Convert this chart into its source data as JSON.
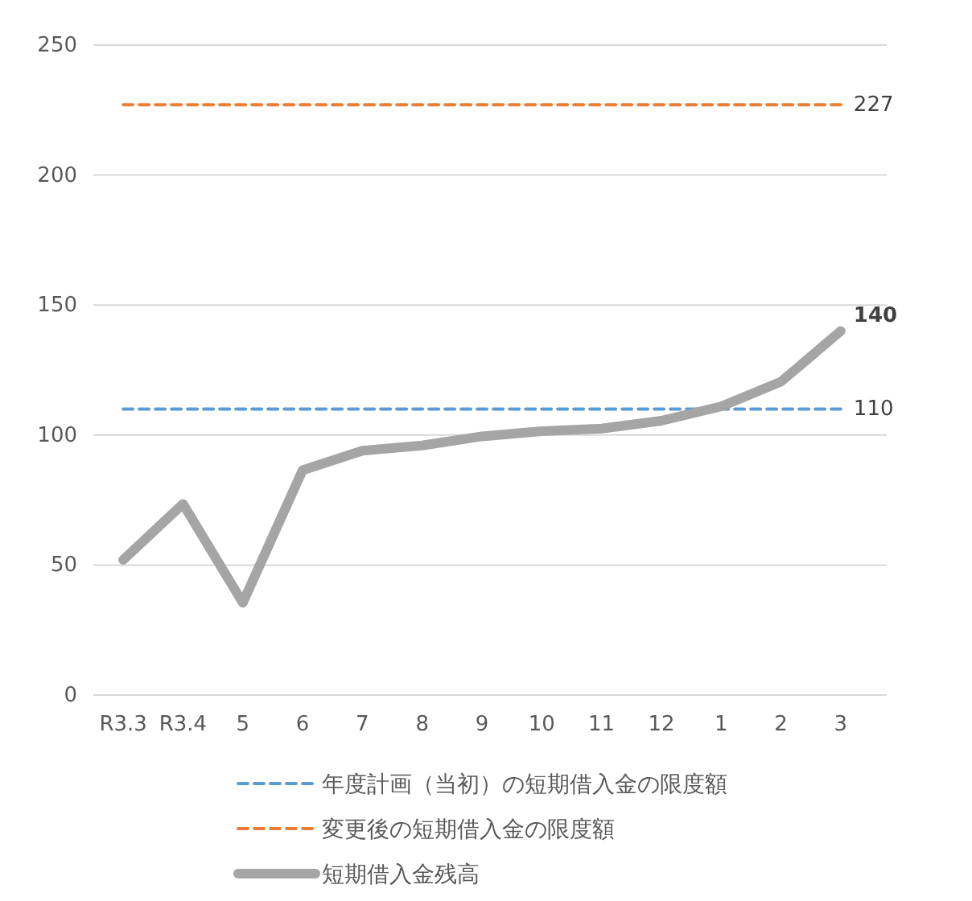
{
  "chart_data": {
    "type": "line",
    "categories": [
      "R3.3",
      "R3.4",
      "5",
      "6",
      "7",
      "8",
      "9",
      "10",
      "11",
      "12",
      "1",
      "2",
      "3"
    ],
    "series": [
      {
        "name": "年度計画（当初）の短期借入金の限度額",
        "color": "#5b9bd5",
        "line_style": "dashed",
        "values": [
          110,
          110,
          110,
          110,
          110,
          110,
          110,
          110,
          110,
          110,
          110,
          110,
          110
        ],
        "value_labels": [
          null,
          null,
          null,
          null,
          null,
          null,
          null,
          null,
          null,
          null,
          null,
          null,
          "110"
        ]
      },
      {
        "name": "変更後の短期借入金の限度額",
        "color": "#ed7d31",
        "line_style": "dashed",
        "values": [
          227,
          227,
          227,
          227,
          227,
          227,
          227,
          227,
          227,
          227,
          227,
          227,
          227
        ],
        "value_labels": [
          null,
          null,
          null,
          null,
          null,
          null,
          null,
          null,
          null,
          null,
          null,
          null,
          "227"
        ]
      },
      {
        "name": "短期借入金残高",
        "color": "#a5a5a5",
        "line_style": "solid",
        "values": [
          52,
          73.5,
          35.5,
          86.5,
          94,
          96,
          99.5,
          101.5,
          102.5,
          105.5,
          111,
          120.5,
          140
        ],
        "value_labels": [
          null,
          null,
          null,
          null,
          null,
          null,
          null,
          null,
          null,
          null,
          null,
          null,
          "140"
        ]
      }
    ],
    "ylim": [
      0,
      250
    ],
    "yticks": [
      0,
      50,
      100,
      150,
      200,
      250
    ],
    "grid": "y",
    "legend": "bottom",
    "marker": "none"
  }
}
